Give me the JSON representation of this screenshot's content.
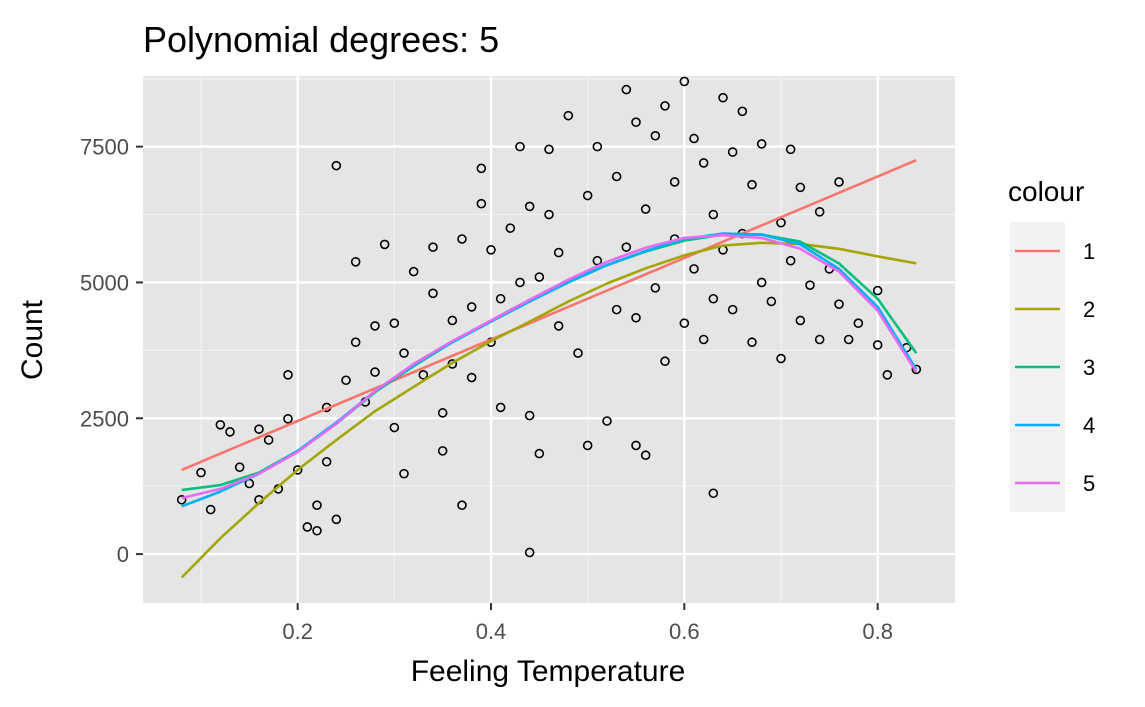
{
  "chart_data": {
    "type": "scatter",
    "title": "Polynomial degrees: 5",
    "xlabel": "Feeling Temperature",
    "ylabel": "Count",
    "xlim": [
      0.04,
      0.88
    ],
    "ylim": [
      -900,
      8800
    ],
    "x_ticks": [
      0.2,
      0.4,
      0.6,
      0.8
    ],
    "x_tick_labels": [
      "0.2",
      "0.4",
      "0.6",
      "0.8"
    ],
    "y_ticks": [
      0,
      2500,
      5000,
      7500
    ],
    "y_tick_labels": [
      "0",
      "2500",
      "5000",
      "7500"
    ],
    "grid": true,
    "panel_background": "#e5e5e5",
    "legend": {
      "title": "colour",
      "position": "right",
      "entries": [
        "1",
        "2",
        "3",
        "4",
        "5"
      ]
    },
    "points_count_approx": 731,
    "points": [
      [
        0.08,
        1000
      ],
      [
        0.1,
        1500
      ],
      [
        0.11,
        820
      ],
      [
        0.12,
        2380
      ],
      [
        0.13,
        2250
      ],
      [
        0.14,
        1600
      ],
      [
        0.15,
        1300
      ],
      [
        0.16,
        2300
      ],
      [
        0.16,
        1000
      ],
      [
        0.17,
        2100
      ],
      [
        0.18,
        1200
      ],
      [
        0.19,
        2490
      ],
      [
        0.19,
        3300
      ],
      [
        0.2,
        1550
      ],
      [
        0.21,
        500
      ],
      [
        0.22,
        900
      ],
      [
        0.22,
        430
      ],
      [
        0.23,
        2700
      ],
      [
        0.23,
        1700
      ],
      [
        0.24,
        640
      ],
      [
        0.24,
        7150
      ],
      [
        0.25,
        3200
      ],
      [
        0.26,
        3900
      ],
      [
        0.26,
        5380
      ],
      [
        0.27,
        2800
      ],
      [
        0.28,
        3350
      ],
      [
        0.28,
        4200
      ],
      [
        0.29,
        5700
      ],
      [
        0.3,
        2330
      ],
      [
        0.3,
        4250
      ],
      [
        0.31,
        3700
      ],
      [
        0.31,
        1480
      ],
      [
        0.32,
        5200
      ],
      [
        0.33,
        3300
      ],
      [
        0.34,
        4800
      ],
      [
        0.34,
        5650
      ],
      [
        0.35,
        2600
      ],
      [
        0.35,
        1900
      ],
      [
        0.36,
        3500
      ],
      [
        0.36,
        4300
      ],
      [
        0.37,
        5800
      ],
      [
        0.37,
        900
      ],
      [
        0.38,
        3250
      ],
      [
        0.38,
        4550
      ],
      [
        0.39,
        6450
      ],
      [
        0.39,
        7100
      ],
      [
        0.4,
        3900
      ],
      [
        0.4,
        5600
      ],
      [
        0.41,
        2700
      ],
      [
        0.41,
        4700
      ],
      [
        0.42,
        6000
      ],
      [
        0.43,
        5000
      ],
      [
        0.43,
        7500
      ],
      [
        0.44,
        30
      ],
      [
        0.44,
        2550
      ],
      [
        0.44,
        6400
      ],
      [
        0.45,
        5100
      ],
      [
        0.45,
        1850
      ],
      [
        0.46,
        6250
      ],
      [
        0.46,
        7450
      ],
      [
        0.47,
        4200
      ],
      [
        0.47,
        5550
      ],
      [
        0.48,
        8070
      ],
      [
        0.49,
        3700
      ],
      [
        0.5,
        2000
      ],
      [
        0.5,
        6600
      ],
      [
        0.51,
        5400
      ],
      [
        0.51,
        7500
      ],
      [
        0.52,
        2450
      ],
      [
        0.53,
        4500
      ],
      [
        0.53,
        6950
      ],
      [
        0.54,
        5650
      ],
      [
        0.54,
        8550
      ],
      [
        0.55,
        4350
      ],
      [
        0.55,
        2000
      ],
      [
        0.55,
        7950
      ],
      [
        0.56,
        6350
      ],
      [
        0.56,
        1820
      ],
      [
        0.57,
        4900
      ],
      [
        0.57,
        7700
      ],
      [
        0.58,
        3550
      ],
      [
        0.58,
        8250
      ],
      [
        0.59,
        5800
      ],
      [
        0.59,
        6850
      ],
      [
        0.6,
        4250
      ],
      [
        0.6,
        8700
      ],
      [
        0.61,
        5250
      ],
      [
        0.61,
        7650
      ],
      [
        0.62,
        3950
      ],
      [
        0.62,
        7200
      ],
      [
        0.63,
        4700
      ],
      [
        0.63,
        6250
      ],
      [
        0.63,
        1120
      ],
      [
        0.64,
        8400
      ],
      [
        0.64,
        5600
      ],
      [
        0.65,
        7400
      ],
      [
        0.65,
        4500
      ],
      [
        0.66,
        5900
      ],
      [
        0.66,
        8150
      ],
      [
        0.67,
        3900
      ],
      [
        0.67,
        6800
      ],
      [
        0.68,
        5000
      ],
      [
        0.68,
        7550
      ],
      [
        0.69,
        4650
      ],
      [
        0.7,
        6100
      ],
      [
        0.7,
        3600
      ],
      [
        0.71,
        5400
      ],
      [
        0.71,
        7450
      ],
      [
        0.72,
        4300
      ],
      [
        0.72,
        6750
      ],
      [
        0.73,
        4950
      ],
      [
        0.74,
        3950
      ],
      [
        0.74,
        6300
      ],
      [
        0.75,
        5250
      ],
      [
        0.76,
        4600
      ],
      [
        0.76,
        6850
      ],
      [
        0.77,
        3950
      ],
      [
        0.78,
        4250
      ],
      [
        0.8,
        3850
      ],
      [
        0.8,
        4850
      ],
      [
        0.81,
        3300
      ],
      [
        0.83,
        3800
      ],
      [
        0.84,
        3400
      ]
    ],
    "series": [
      {
        "name": "1",
        "color": "#f8766d",
        "x": [
          0.08,
          0.84
        ],
        "y": [
          1550,
          7250
        ]
      },
      {
        "name": "2",
        "color": "#a3a500",
        "x": [
          0.08,
          0.12,
          0.16,
          0.2,
          0.24,
          0.28,
          0.32,
          0.36,
          0.4,
          0.44,
          0.48,
          0.52,
          0.56,
          0.6,
          0.64,
          0.68,
          0.72,
          0.76,
          0.8,
          0.84
        ],
        "y": [
          -430,
          290,
          940,
          1550,
          2100,
          2630,
          3080,
          3520,
          3920,
          4280,
          4650,
          4980,
          5260,
          5500,
          5680,
          5730,
          5710,
          5620,
          5480,
          5350
        ]
      },
      {
        "name": "3",
        "color": "#00bf7d",
        "x": [
          0.08,
          0.12,
          0.16,
          0.2,
          0.24,
          0.28,
          0.32,
          0.36,
          0.4,
          0.44,
          0.48,
          0.52,
          0.56,
          0.6,
          0.64,
          0.68,
          0.72,
          0.76,
          0.8,
          0.84
        ],
        "y": [
          1180,
          1270,
          1500,
          1900,
          2400,
          2980,
          3460,
          3900,
          4300,
          4680,
          5020,
          5320,
          5570,
          5770,
          5880,
          5880,
          5750,
          5350,
          4700,
          3700
        ]
      },
      {
        "name": "4",
        "color": "#00b0f6",
        "x": [
          0.08,
          0.12,
          0.16,
          0.2,
          0.24,
          0.28,
          0.32,
          0.36,
          0.4,
          0.44,
          0.48,
          0.52,
          0.56,
          0.6,
          0.64,
          0.68,
          0.72,
          0.76,
          0.8,
          0.84
        ],
        "y": [
          880,
          1150,
          1480,
          1900,
          2420,
          3000,
          3480,
          3900,
          4280,
          4650,
          5000,
          5320,
          5580,
          5800,
          5900,
          5880,
          5700,
          5250,
          4550,
          3400
        ]
      },
      {
        "name": "5",
        "color": "#e76bf3",
        "x": [
          0.08,
          0.12,
          0.16,
          0.2,
          0.24,
          0.28,
          0.32,
          0.36,
          0.4,
          0.44,
          0.48,
          0.52,
          0.56,
          0.6,
          0.64,
          0.68,
          0.72,
          0.76,
          0.8,
          0.84
        ],
        "y": [
          1030,
          1200,
          1480,
          1880,
          2400,
          3000,
          3500,
          3920,
          4300,
          4680,
          5050,
          5380,
          5640,
          5820,
          5870,
          5820,
          5620,
          5200,
          4480,
          3350
        ]
      }
    ]
  }
}
